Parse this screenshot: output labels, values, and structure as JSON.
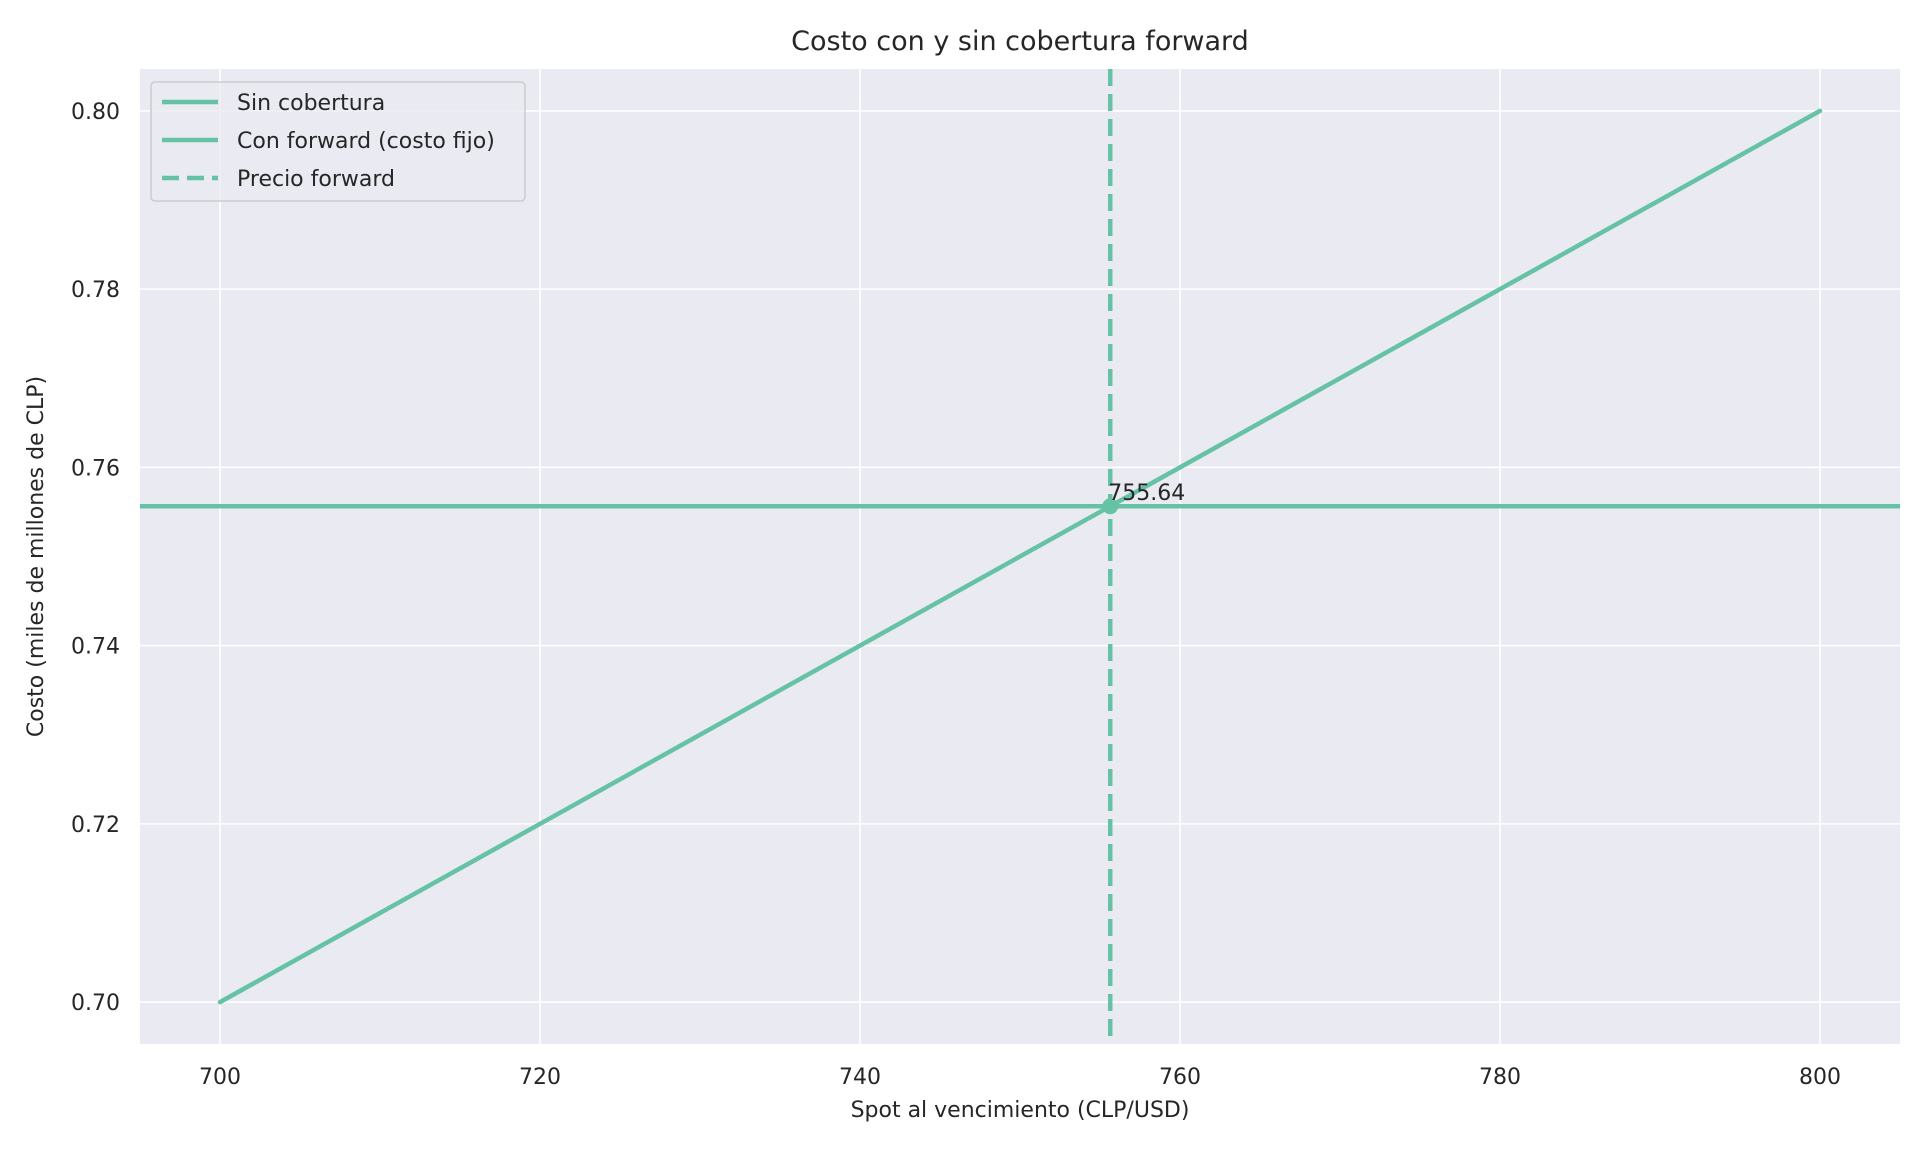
{
  "chart_data": {
    "type": "line",
    "title": "Costo con y sin cobertura forward",
    "xlabel": "Spot al vencimiento (CLP/USD)",
    "ylabel": "Costo (miles de millones de CLP)",
    "xlim": [
      695,
      805
    ],
    "ylim": [
      0.6953,
      0.8047
    ],
    "xticks": [
      700,
      720,
      740,
      760,
      780,
      800
    ],
    "yticks": [
      0.7,
      0.72,
      0.74,
      0.76,
      0.78,
      0.8
    ],
    "grid": true,
    "legend_position": "top-left",
    "series": [
      {
        "name": "Sin cobertura",
        "style": "solid",
        "color": "#66c2a5",
        "x": [
          700,
          800
        ],
        "y": [
          0.7,
          0.8
        ]
      },
      {
        "name": "Con forward (costo fijo)",
        "style": "solid",
        "color": "#66c2a5",
        "type": "hline",
        "y": 0.75564
      },
      {
        "name": "Precio forward",
        "style": "dashed",
        "color": "#66c2a5",
        "type": "vline",
        "x": 755.64
      }
    ],
    "marker": {
      "x": 755.64,
      "y": 0.75564,
      "label": "755.64"
    }
  }
}
